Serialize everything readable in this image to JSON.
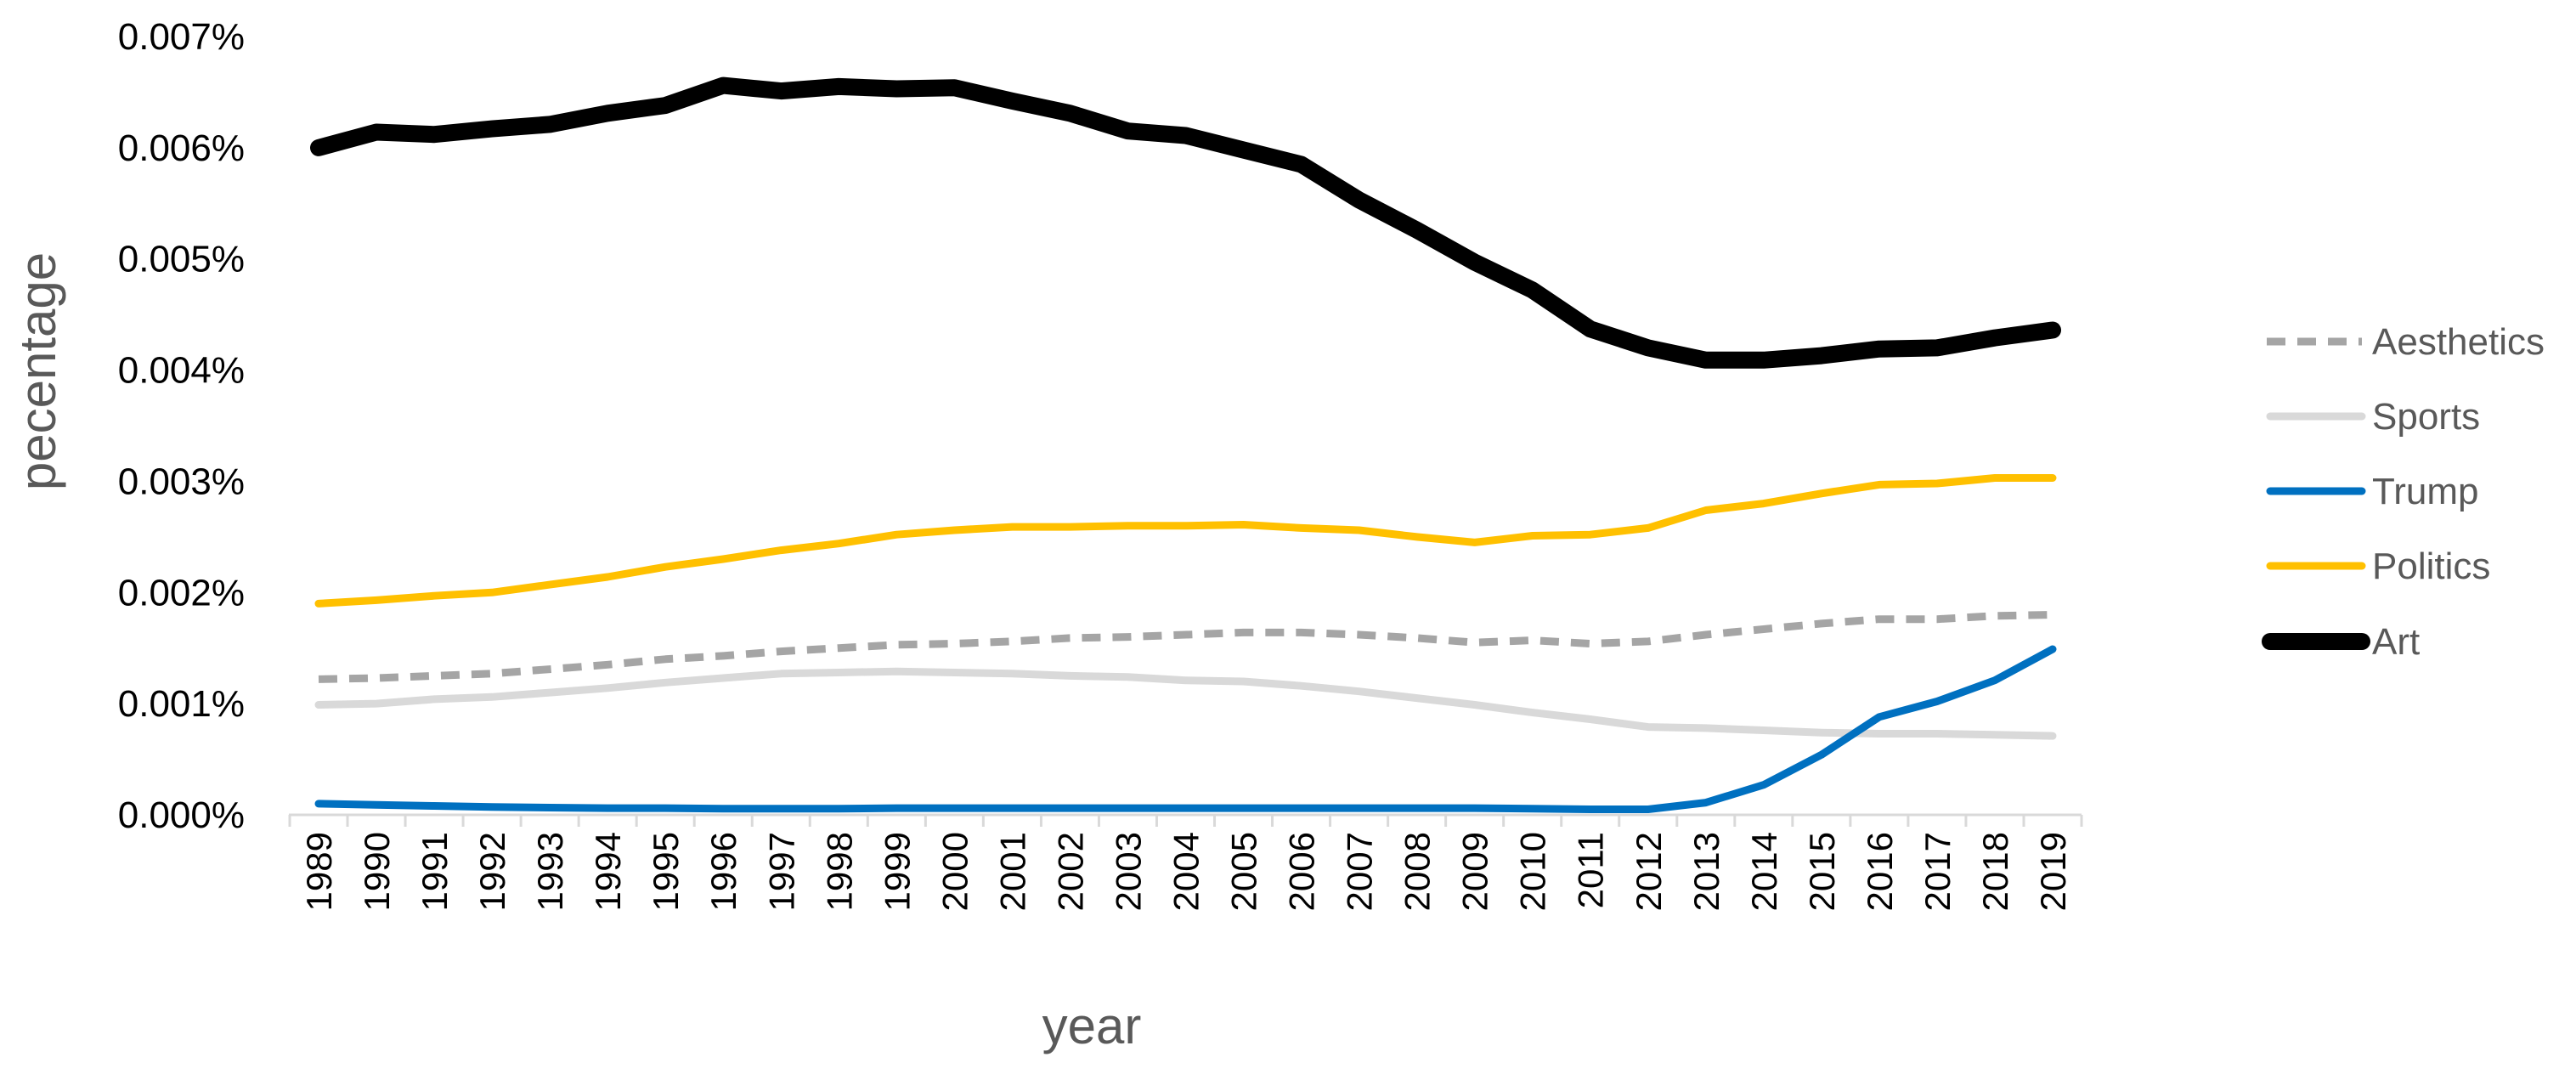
{
  "chart_data": {
    "type": "line",
    "title": "",
    "xlabel": "year",
    "ylabel": "pecentage",
    "ylim": [
      0,
      0.007
    ],
    "y_ticks": [
      "0.000%",
      "0.001%",
      "0.002%",
      "0.003%",
      "0.004%",
      "0.005%",
      "0.006%",
      "0.007%"
    ],
    "y_tick_values": [
      0,
      0.001,
      0.002,
      0.003,
      0.004,
      0.005,
      0.006,
      0.007
    ],
    "grid": false,
    "legend_position": "right",
    "x": [
      "1989",
      "1990",
      "1991",
      "1992",
      "1993",
      "1994",
      "1995",
      "1996",
      "1997",
      "1998",
      "1999",
      "2000",
      "2001",
      "2002",
      "2003",
      "2004",
      "2005",
      "2006",
      "2007",
      "2008",
      "2009",
      "2010",
      "2011",
      "2012",
      "2013",
      "2014",
      "2015",
      "2016",
      "2017",
      "2018",
      "2019"
    ],
    "series": [
      {
        "name": "Aesthetics",
        "color": "#A5A5A5",
        "style": "dashed",
        "values": [
          0.00122,
          0.00123,
          0.00125,
          0.00127,
          0.00131,
          0.00135,
          0.0014,
          0.00143,
          0.00147,
          0.0015,
          0.00153,
          0.00154,
          0.00156,
          0.00159,
          0.0016,
          0.00162,
          0.00164,
          0.00164,
          0.00162,
          0.00159,
          0.00155,
          0.00157,
          0.00154,
          0.00156,
          0.00162,
          0.00167,
          0.00172,
          0.00176,
          0.00176,
          0.00179,
          0.0018
        ]
      },
      {
        "name": "Sports",
        "color": "#D9D9D9",
        "style": "solid",
        "values": [
          0.00099,
          0.001,
          0.00104,
          0.00106,
          0.0011,
          0.00114,
          0.00119,
          0.00123,
          0.00127,
          0.00128,
          0.00129,
          0.00128,
          0.00127,
          0.00125,
          0.00124,
          0.00121,
          0.0012,
          0.00116,
          0.00111,
          0.00105,
          0.00099,
          0.00092,
          0.00086,
          0.00079,
          0.00078,
          0.00076,
          0.00074,
          0.00073,
          0.00073,
          0.00072,
          0.00071
        ]
      },
      {
        "name": "Trump",
        "color": "#0070C0",
        "style": "solid",
        "values": [
          0.0001,
          9e-05,
          8e-05,
          7e-05,
          6.5e-05,
          6e-05,
          6e-05,
          5.5e-05,
          5.5e-05,
          5.5e-05,
          6e-05,
          6e-05,
          6e-05,
          6e-05,
          6e-05,
          6e-05,
          6e-05,
          6e-05,
          6e-05,
          6e-05,
          6e-05,
          5.5e-05,
          5e-05,
          5e-05,
          0.00011,
          0.00027,
          0.00054,
          0.00088,
          0.00102,
          0.00121,
          0.00149
        ]
      },
      {
        "name": "Politics",
        "color": "#FFC000",
        "style": "solid",
        "values": [
          0.0019,
          0.00193,
          0.00197,
          0.002,
          0.00207,
          0.00214,
          0.00223,
          0.0023,
          0.00238,
          0.00244,
          0.00252,
          0.00256,
          0.00259,
          0.00259,
          0.0026,
          0.0026,
          0.00261,
          0.00258,
          0.00256,
          0.0025,
          0.00245,
          0.00251,
          0.00252,
          0.00258,
          0.00274,
          0.0028,
          0.00289,
          0.00297,
          0.00298,
          0.00303,
          0.00303
        ]
      },
      {
        "name": "Art",
        "color": "#000000",
        "style": "solid",
        "values": [
          0.006,
          0.00614,
          0.00612,
          0.00617,
          0.00621,
          0.00631,
          0.00638,
          0.00656,
          0.00651,
          0.00655,
          0.00653,
          0.00654,
          0.00642,
          0.00631,
          0.00615,
          0.00611,
          0.00598,
          0.00585,
          0.00553,
          0.00526,
          0.00497,
          0.00472,
          0.00437,
          0.0042,
          0.00409,
          0.00409,
          0.00413,
          0.00419,
          0.0042,
          0.00429,
          0.00436
        ]
      }
    ],
    "legend": [
      "Aesthetics",
      "Sports",
      "Trump",
      "Politics",
      "Art"
    ]
  }
}
